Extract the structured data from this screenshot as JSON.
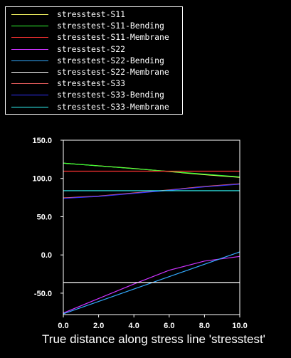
{
  "legend": [
    {
      "label": "stresstest-S11",
      "color": "#ffff66"
    },
    {
      "label": "stresstest-S11-Bending",
      "color": "#33ff33"
    },
    {
      "label": "stresstest-S11-Membrane",
      "color": "#ff3333"
    },
    {
      "label": "stresstest-S22",
      "color": "#cc33ff"
    },
    {
      "label": "stresstest-S22-Bending",
      "color": "#33aaff"
    },
    {
      "label": "stresstest-S22-Membrane",
      "color": "#ffffff"
    },
    {
      "label": "stresstest-S33",
      "color": "#ff6666"
    },
    {
      "label": "stresstest-S33-Bending",
      "color": "#3333ff"
    },
    {
      "label": "stresstest-S33-Membrane",
      "color": "#33ffff"
    }
  ],
  "chart_data": {
    "type": "line",
    "title": "",
    "xlabel": "True distance along stress line 'stresstest'",
    "ylabel": "",
    "xlim": [
      0.0,
      10.0
    ],
    "ylim": [
      -78,
      150
    ],
    "x_ticks": [
      "0.0",
      "2.0",
      "4.0",
      "6.0",
      "8.0",
      "10.0"
    ],
    "y_ticks": [
      "150.0",
      "100.0",
      "50.0",
      "0.0",
      "-50.0"
    ],
    "series": [
      {
        "name": "stresstest-S11",
        "color": "#ffff66",
        "x": [
          0,
          2,
          4,
          6,
          8,
          10
        ],
        "y": [
          120,
          116.5,
          113,
          109,
          105,
          101.5
        ]
      },
      {
        "name": "stresstest-S11-Bending",
        "color": "#33ff33",
        "x": [
          0,
          10
        ],
        "y": [
          120,
          102
        ]
      },
      {
        "name": "stresstest-S11-Membrane",
        "color": "#ff3333",
        "x": [
          0,
          10
        ],
        "y": [
          109.5,
          109.5
        ]
      },
      {
        "name": "stresstest-S22",
        "color": "#cc33ff",
        "x": [
          0,
          2,
          4,
          6,
          8,
          10
        ],
        "y": [
          -76,
          -57,
          -38,
          -20,
          -8,
          -2
        ]
      },
      {
        "name": "stresstest-S22-Bending",
        "color": "#33aaff",
        "x": [
          0,
          10
        ],
        "y": [
          -77,
          4
        ]
      },
      {
        "name": "stresstest-S22-Membrane",
        "color": "#ffffff",
        "x": [
          0,
          10
        ],
        "y": [
          -36,
          -36
        ]
      },
      {
        "name": "stresstest-S33",
        "color": "#ff6666",
        "x": [
          0,
          2,
          4,
          6,
          8,
          10
        ],
        "y": [
          74.5,
          77,
          81,
          85,
          89.5,
          93
        ]
      },
      {
        "name": "stresstest-S33-Bending",
        "color": "#3333ff",
        "x": [
          0,
          2,
          4,
          6,
          8,
          10
        ],
        "y": [
          74,
          76.5,
          80.5,
          84.5,
          89,
          92.5
        ]
      },
      {
        "name": "stresstest-S33-Membrane",
        "color": "#33ffff",
        "x": [
          0,
          10
        ],
        "y": [
          84,
          84
        ]
      }
    ]
  }
}
